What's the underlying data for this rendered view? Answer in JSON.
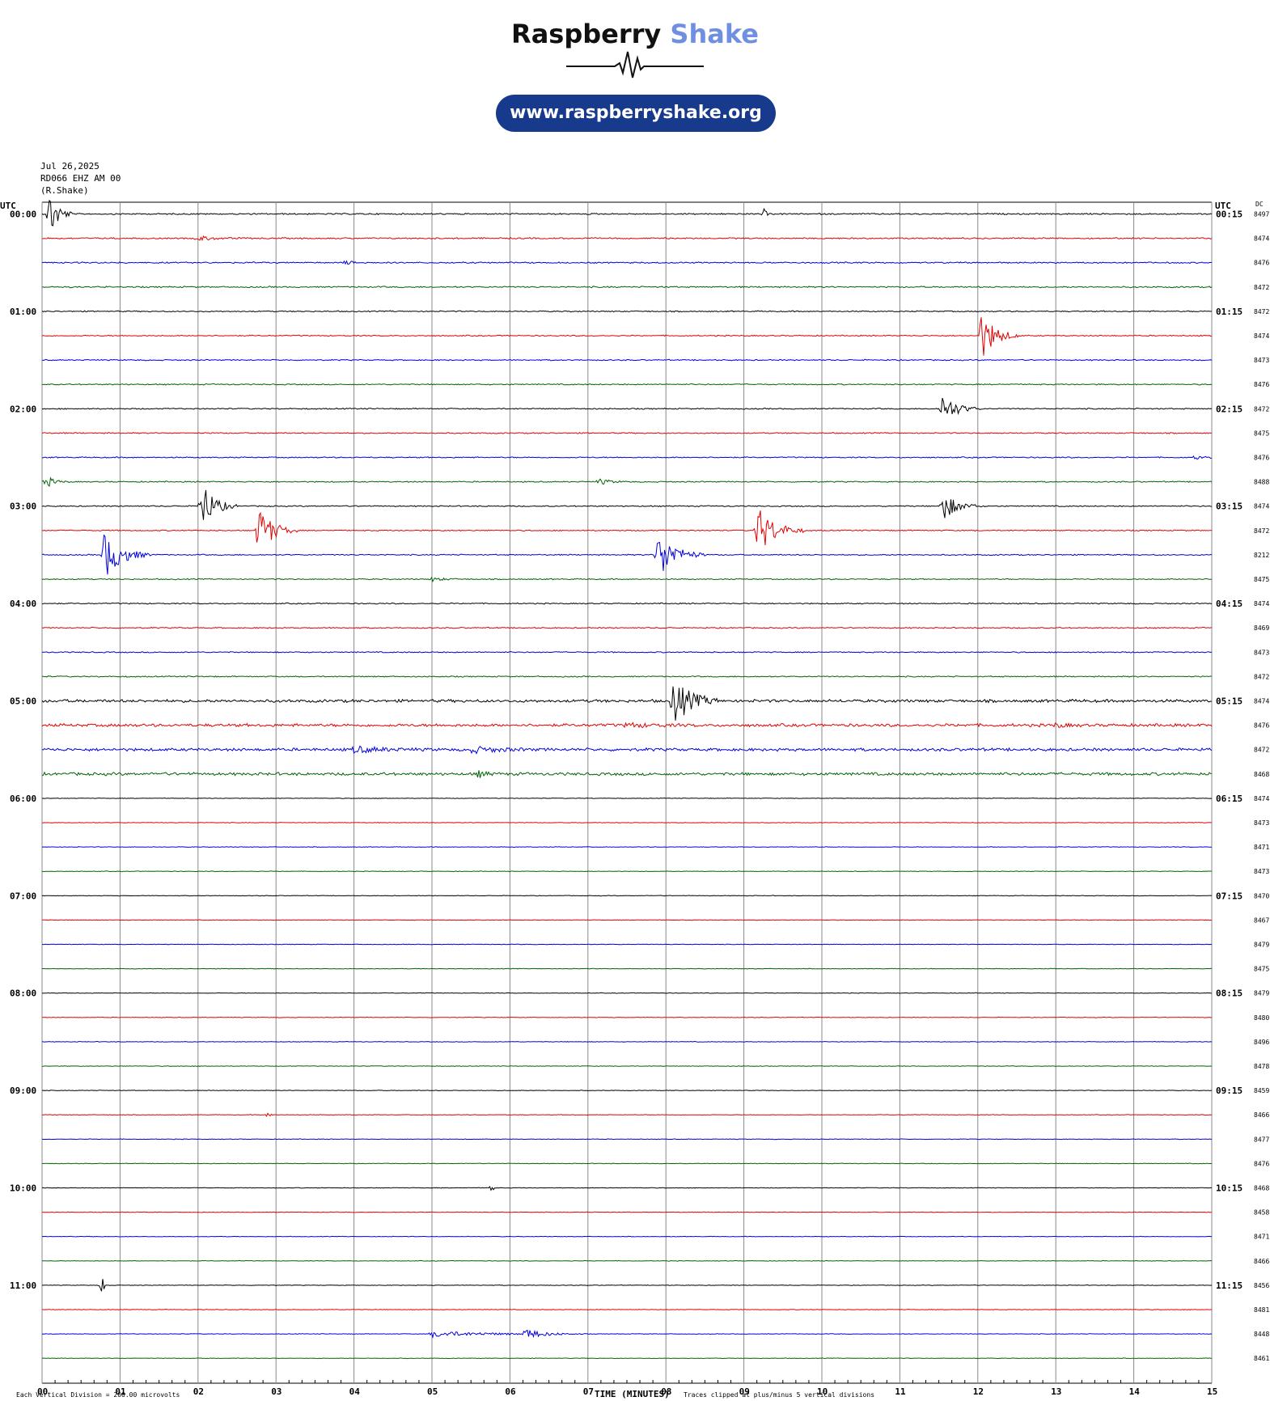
{
  "brand": {
    "name_dark": "Raspberry",
    "name_light": "Shake",
    "url": "www.raspberryshake.org",
    "accent": "#6f8fe0",
    "pill_color": "#173a8c"
  },
  "header": {
    "date": "Jul 26,2025",
    "station": "RD066 EHZ AM 00",
    "network": "(R.Shake)"
  },
  "axes": {
    "left_title": "UTC",
    "right_title": "UTC",
    "dc_title": "DC",
    "xlabel": "TIME (MINUTES)"
  },
  "footer": {
    "note_left": "Each Vertical Division = 200.00 microvolts",
    "note_right": "Traces clipped at plus/minus 5 vertical divisions"
  },
  "colors": {
    "trace": [
      "#000000",
      "#e00000",
      "#0000dd",
      "#006400"
    ],
    "grid": "#888888"
  },
  "chart_data": {
    "type": "line",
    "x_range_minutes": [
      0,
      15
    ],
    "x_ticks": [
      "00",
      "01",
      "02",
      "03",
      "04",
      "05",
      "06",
      "07",
      "08",
      "09",
      "10",
      "11",
      "12",
      "13",
      "14",
      "15"
    ],
    "left_hour_labels": [
      "00:00",
      "01:00",
      "02:00",
      "03:00",
      "04:00",
      "05:00",
      "06:00",
      "07:00",
      "08:00",
      "09:00",
      "10:00",
      "11:00"
    ],
    "right_hour_labels": [
      "00:15",
      "01:15",
      "02:15",
      "03:15",
      "04:15",
      "05:15",
      "06:15",
      "07:15",
      "08:15",
      "09:15",
      "10:15",
      "11:15"
    ],
    "dc_offsets": [
      "8497",
      "8474",
      "8476",
      "8472",
      "8472",
      "8474",
      "8473",
      "8476",
      "8472",
      "8475",
      "8476",
      "8488",
      "8474",
      "8472",
      "8212",
      "8475",
      "8474",
      "8469",
      "8473",
      "8472",
      "8474",
      "8476",
      "8472",
      "8468",
      "8474",
      "8473",
      "8471",
      "8473",
      "8470",
      "8467",
      "8479",
      "8475",
      "8479",
      "8480",
      "8496",
      "8478",
      "8459",
      "8466",
      "8477",
      "8476",
      "8468",
      "8458",
      "8471",
      "8466",
      "8456",
      "8481",
      "8448",
      "8461"
    ],
    "trace_rows": 48,
    "events": [
      {
        "row": 0,
        "minute": 0.1,
        "amp": 5,
        "dur": 0.3
      },
      {
        "row": 0,
        "minute": 9.27,
        "amp": 1.2,
        "dur": 0.05
      },
      {
        "row": 1,
        "minute": 2.0,
        "amp": 0.5,
        "dur": 0.6
      },
      {
        "row": 2,
        "minute": 3.9,
        "amp": 0.4,
        "dur": 0.3
      },
      {
        "row": 5,
        "minute": 12.05,
        "amp": 5,
        "dur": 0.5
      },
      {
        "row": 8,
        "minute": 11.55,
        "amp": 3,
        "dur": 0.5
      },
      {
        "row": 10,
        "minute": 14.8,
        "amp": 0.4,
        "dur": 0.3
      },
      {
        "row": 11,
        "minute": 0.05,
        "amp": 1.2,
        "dur": 0.3
      },
      {
        "row": 11,
        "minute": 7.15,
        "amp": 0.6,
        "dur": 0.4
      },
      {
        "row": 12,
        "minute": 2.05,
        "amp": 5,
        "dur": 0.45
      },
      {
        "row": 12,
        "minute": 11.55,
        "amp": 3,
        "dur": 0.5
      },
      {
        "row": 13,
        "minute": 2.78,
        "amp": 5,
        "dur": 0.5
      },
      {
        "row": 13,
        "minute": 9.18,
        "amp": 5,
        "dur": 0.6
      },
      {
        "row": 14,
        "minute": 0.8,
        "amp": 5,
        "dur": 0.6
      },
      {
        "row": 14,
        "minute": 7.9,
        "amp": 5,
        "dur": 0.6
      },
      {
        "row": 15,
        "minute": 5.0,
        "amp": 0.4,
        "dur": 0.4
      },
      {
        "row": 20,
        "minute": 8.1,
        "amp": 5,
        "dur": 0.6
      },
      {
        "row": 21,
        "minute": 7.5,
        "amp": 0.4,
        "dur": 1.0
      },
      {
        "row": 21,
        "minute": 13.0,
        "amp": 0.4,
        "dur": 0.4
      },
      {
        "row": 22,
        "minute": 4.0,
        "amp": 0.6,
        "dur": 1.0
      },
      {
        "row": 22,
        "minute": 5.5,
        "amp": 0.6,
        "dur": 1.0
      },
      {
        "row": 23,
        "minute": 5.6,
        "amp": 0.6,
        "dur": 0.3
      },
      {
        "row": 37,
        "minute": 2.9,
        "amp": 0.5,
        "dur": 0.1
      },
      {
        "row": 40,
        "minute": 5.78,
        "amp": 1.6,
        "dur": 0.05
      },
      {
        "row": 44,
        "minute": 0.78,
        "amp": 2.5,
        "dur": 0.05
      },
      {
        "row": 46,
        "minute": 5.0,
        "amp": 0.6,
        "dur": 2.0
      },
      {
        "row": 46,
        "minute": 6.2,
        "amp": 1.0,
        "dur": 0.6
      }
    ],
    "noise_level_by_row_group": [
      {
        "rows": [
          0,
          3
        ],
        "level": 0.12
      },
      {
        "rows": [
          4,
          19
        ],
        "level": 0.1
      },
      {
        "rows": [
          20,
          23
        ],
        "level": 0.25
      },
      {
        "rows": [
          24,
          47
        ],
        "level": 0.05
      }
    ]
  }
}
